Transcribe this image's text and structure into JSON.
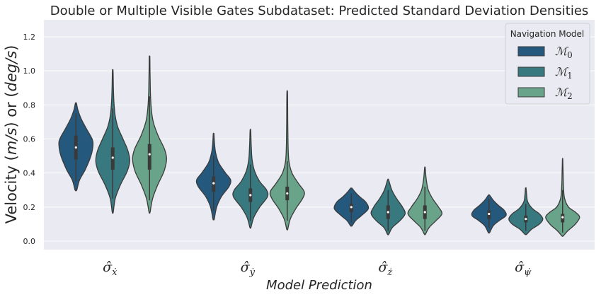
{
  "chart_data": {
    "type": "violin",
    "title": "Double or Multiple Visible Gates Subdataset: Predicted Standard Deviation Densities",
    "xlabel": "Model Prediction",
    "ylabel": "Velocity (m/s) or (deg/s)",
    "ylabel_parts": [
      "Velocity (",
      "m/s",
      ") or (",
      "deg/s",
      ")"
    ],
    "ylim": [
      -0.05,
      1.3
    ],
    "yticks": [
      "0.0",
      "0.2",
      "0.4",
      "0.6",
      "0.8",
      "1.0",
      "1.2"
    ],
    "grid": true,
    "categories": [
      {
        "base": "σ̂",
        "sub": "ẋ"
      },
      {
        "base": "σ̂",
        "sub": "ẏ"
      },
      {
        "base": "σ̂",
        "sub": "ż"
      },
      {
        "base": "σ̂",
        "sub": "ψ̇"
      }
    ],
    "legend": {
      "title": "Navigation Model",
      "placement": "top-right",
      "entries": [
        {
          "base": "ℳ",
          "sub": "0",
          "color": "#25587d"
        },
        {
          "base": "ℳ",
          "sub": "1",
          "color": "#37797f"
        },
        {
          "base": "ℳ",
          "sub": "2",
          "color": "#69a48a"
        }
      ]
    },
    "series": [
      {
        "name": "M0",
        "color": "#25587d",
        "violins": [
          {
            "min": 0.3,
            "q1": 0.48,
            "median": 0.55,
            "q3": 0.62,
            "max": 0.81,
            "whisker_low": 0.35,
            "whisker_high": 0.75,
            "profile": [
              [
                0.3,
                0.05
              ],
              [
                0.36,
                0.22
              ],
              [
                0.42,
                0.55
              ],
              [
                0.5,
                0.88
              ],
              [
                0.56,
                1.0
              ],
              [
                0.6,
                0.95
              ],
              [
                0.66,
                0.62
              ],
              [
                0.72,
                0.3
              ],
              [
                0.77,
                0.12
              ],
              [
                0.81,
                0.03
              ]
            ]
          },
          {
            "min": 0.13,
            "q1": 0.29,
            "median": 0.34,
            "q3": 0.38,
            "max": 0.63,
            "whisker_low": 0.18,
            "whisker_high": 0.5,
            "profile": [
              [
                0.13,
                0.04
              ],
              [
                0.2,
                0.18
              ],
              [
                0.26,
                0.45
              ],
              [
                0.32,
                0.9
              ],
              [
                0.36,
                1.0
              ],
              [
                0.4,
                0.7
              ],
              [
                0.46,
                0.3
              ],
              [
                0.52,
                0.12
              ],
              [
                0.58,
                0.05
              ],
              [
                0.63,
                0.02
              ]
            ]
          },
          {
            "min": 0.09,
            "q1": 0.17,
            "median": 0.2,
            "q3": 0.22,
            "max": 0.31,
            "whisker_low": 0.11,
            "whisker_high": 0.28,
            "profile": [
              [
                0.09,
                0.05
              ],
              [
                0.12,
                0.25
              ],
              [
                0.15,
                0.6
              ],
              [
                0.19,
                1.0
              ],
              [
                0.23,
                0.85
              ],
              [
                0.26,
                0.5
              ],
              [
                0.29,
                0.2
              ],
              [
                0.31,
                0.05
              ]
            ]
          },
          {
            "min": 0.05,
            "q1": 0.13,
            "median": 0.16,
            "q3": 0.18,
            "max": 0.27,
            "whisker_low": 0.08,
            "whisker_high": 0.25,
            "profile": [
              [
                0.05,
                0.04
              ],
              [
                0.09,
                0.25
              ],
              [
                0.12,
                0.6
              ],
              [
                0.15,
                1.0
              ],
              [
                0.18,
                0.9
              ],
              [
                0.21,
                0.55
              ],
              [
                0.24,
                0.25
              ],
              [
                0.27,
                0.04
              ]
            ]
          }
        ]
      },
      {
        "name": "M1",
        "color": "#37797f",
        "violins": [
          {
            "min": 0.17,
            "q1": 0.42,
            "median": 0.49,
            "q3": 0.55,
            "max": 1.0,
            "whisker_low": 0.25,
            "whisker_high": 0.78,
            "profile": [
              [
                0.17,
                0.03
              ],
              [
                0.25,
                0.15
              ],
              [
                0.33,
                0.45
              ],
              [
                0.41,
                0.85
              ],
              [
                0.47,
                1.0
              ],
              [
                0.53,
                0.9
              ],
              [
                0.6,
                0.6
              ],
              [
                0.67,
                0.3
              ],
              [
                0.74,
                0.14
              ],
              [
                0.82,
                0.07
              ],
              [
                0.9,
                0.04
              ],
              [
                1.0,
                0.02
              ]
            ]
          },
          {
            "min": 0.08,
            "q1": 0.23,
            "median": 0.27,
            "q3": 0.31,
            "max": 0.65,
            "whisker_low": 0.12,
            "whisker_high": 0.45,
            "profile": [
              [
                0.08,
                0.03
              ],
              [
                0.14,
                0.2
              ],
              [
                0.2,
                0.55
              ],
              [
                0.26,
                1.0
              ],
              [
                0.3,
                0.95
              ],
              [
                0.35,
                0.55
              ],
              [
                0.41,
                0.25
              ],
              [
                0.48,
                0.1
              ],
              [
                0.56,
                0.05
              ],
              [
                0.65,
                0.02
              ]
            ]
          },
          {
            "min": 0.04,
            "q1": 0.13,
            "median": 0.17,
            "q3": 0.21,
            "max": 0.36,
            "whisker_low": 0.06,
            "whisker_high": 0.3,
            "profile": [
              [
                0.04,
                0.04
              ],
              [
                0.08,
                0.25
              ],
              [
                0.12,
                0.7
              ],
              [
                0.16,
                1.0
              ],
              [
                0.2,
                0.85
              ],
              [
                0.25,
                0.5
              ],
              [
                0.3,
                0.22
              ],
              [
                0.36,
                0.03
              ]
            ]
          },
          {
            "min": 0.04,
            "q1": 0.11,
            "median": 0.13,
            "q3": 0.15,
            "max": 0.31,
            "whisker_low": 0.06,
            "whisker_high": 0.22,
            "profile": [
              [
                0.04,
                0.05
              ],
              [
                0.07,
                0.35
              ],
              [
                0.1,
                0.8
              ],
              [
                0.13,
                1.0
              ],
              [
                0.16,
                0.8
              ],
              [
                0.19,
                0.4
              ],
              [
                0.23,
                0.12
              ],
              [
                0.27,
                0.05
              ],
              [
                0.31,
                0.02
              ]
            ]
          }
        ]
      },
      {
        "name": "M2",
        "color": "#69a48a",
        "violins": [
          {
            "min": 0.17,
            "q1": 0.42,
            "median": 0.51,
            "q3": 0.57,
            "max": 1.08,
            "whisker_low": 0.24,
            "whisker_high": 0.85,
            "profile": [
              [
                0.17,
                0.03
              ],
              [
                0.25,
                0.18
              ],
              [
                0.33,
                0.48
              ],
              [
                0.41,
                0.85
              ],
              [
                0.48,
                1.0
              ],
              [
                0.54,
                0.88
              ],
              [
                0.62,
                0.5
              ],
              [
                0.7,
                0.22
              ],
              [
                0.78,
                0.1
              ],
              [
                0.88,
                0.05
              ],
              [
                0.98,
                0.03
              ],
              [
                1.08,
                0.02
              ]
            ]
          },
          {
            "min": 0.07,
            "q1": 0.24,
            "median": 0.28,
            "q3": 0.32,
            "max": 0.87,
            "whisker_low": 0.12,
            "whisker_high": 0.47,
            "profile": [
              [
                0.07,
                0.03
              ],
              [
                0.13,
                0.18
              ],
              [
                0.19,
                0.5
              ],
              [
                0.25,
                0.9
              ],
              [
                0.29,
                1.0
              ],
              [
                0.34,
                0.65
              ],
              [
                0.4,
                0.28
              ],
              [
                0.47,
                0.1
              ],
              [
                0.57,
                0.05
              ],
              [
                0.7,
                0.03
              ],
              [
                0.87,
                0.02
              ]
            ]
          },
          {
            "min": 0.04,
            "q1": 0.13,
            "median": 0.17,
            "q3": 0.21,
            "max": 0.43,
            "whisker_low": 0.06,
            "whisker_high": 0.32,
            "profile": [
              [
                0.04,
                0.03
              ],
              [
                0.08,
                0.25
              ],
              [
                0.12,
                0.65
              ],
              [
                0.16,
                1.0
              ],
              [
                0.2,
                0.8
              ],
              [
                0.25,
                0.45
              ],
              [
                0.3,
                0.2
              ],
              [
                0.36,
                0.08
              ],
              [
                0.43,
                0.02
              ]
            ]
          },
          {
            "min": 0.03,
            "q1": 0.11,
            "median": 0.14,
            "q3": 0.16,
            "max": 0.48,
            "whisker_low": 0.05,
            "whisker_high": 0.3,
            "profile": [
              [
                0.03,
                0.04
              ],
              [
                0.06,
                0.3
              ],
              [
                0.1,
                0.75
              ],
              [
                0.14,
                1.0
              ],
              [
                0.17,
                0.75
              ],
              [
                0.2,
                0.35
              ],
              [
                0.25,
                0.12
              ],
              [
                0.32,
                0.05
              ],
              [
                0.4,
                0.03
              ],
              [
                0.48,
                0.01
              ]
            ]
          }
        ]
      }
    ]
  }
}
